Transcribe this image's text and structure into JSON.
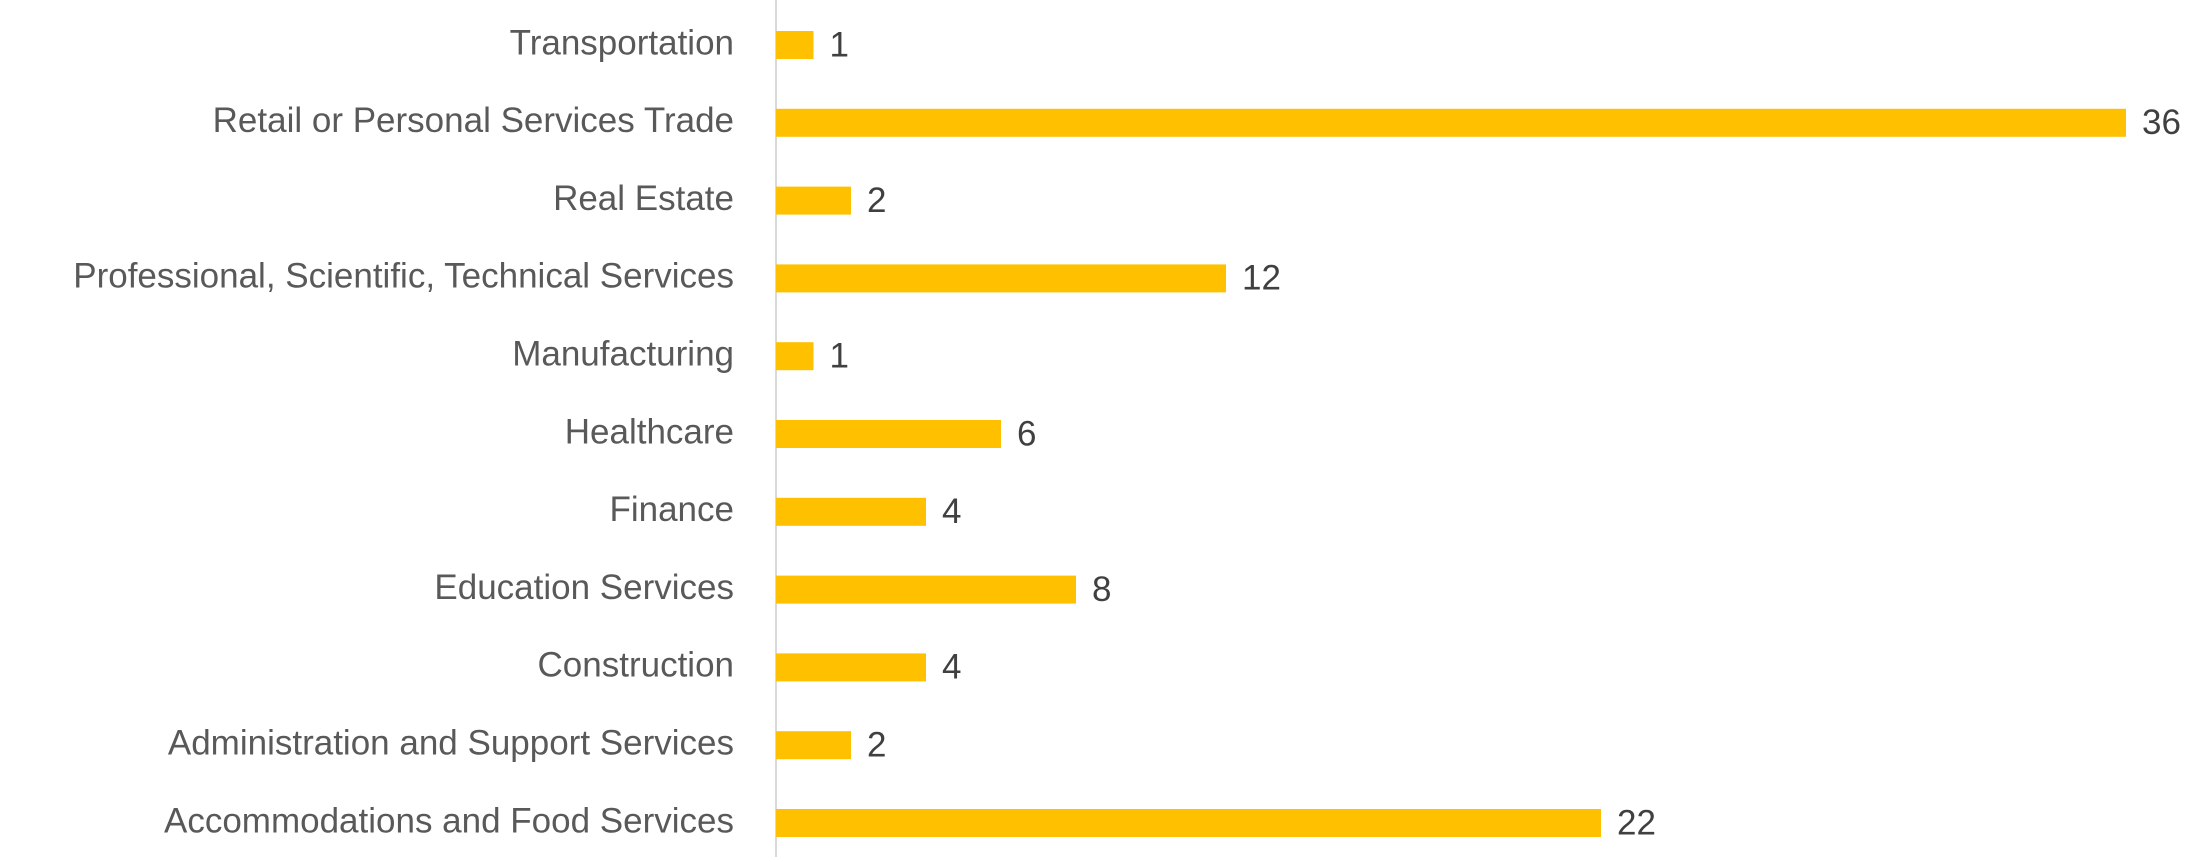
{
  "chart_data": {
    "type": "bar",
    "orientation": "horizontal",
    "categories": [
      "Transportation",
      "Retail or Personal Services Trade",
      "Real Estate",
      "Professional, Scientific, Technical Services",
      "Manufacturing",
      "Healthcare",
      "Finance",
      "Education Services",
      "Construction",
      "Administration and Support Services",
      "Accommodations and Food Services"
    ],
    "values": [
      1,
      36,
      2,
      12,
      1,
      6,
      4,
      8,
      4,
      2,
      22
    ],
    "color": "#FFC000",
    "xlim": [
      0,
      36
    ]
  }
}
